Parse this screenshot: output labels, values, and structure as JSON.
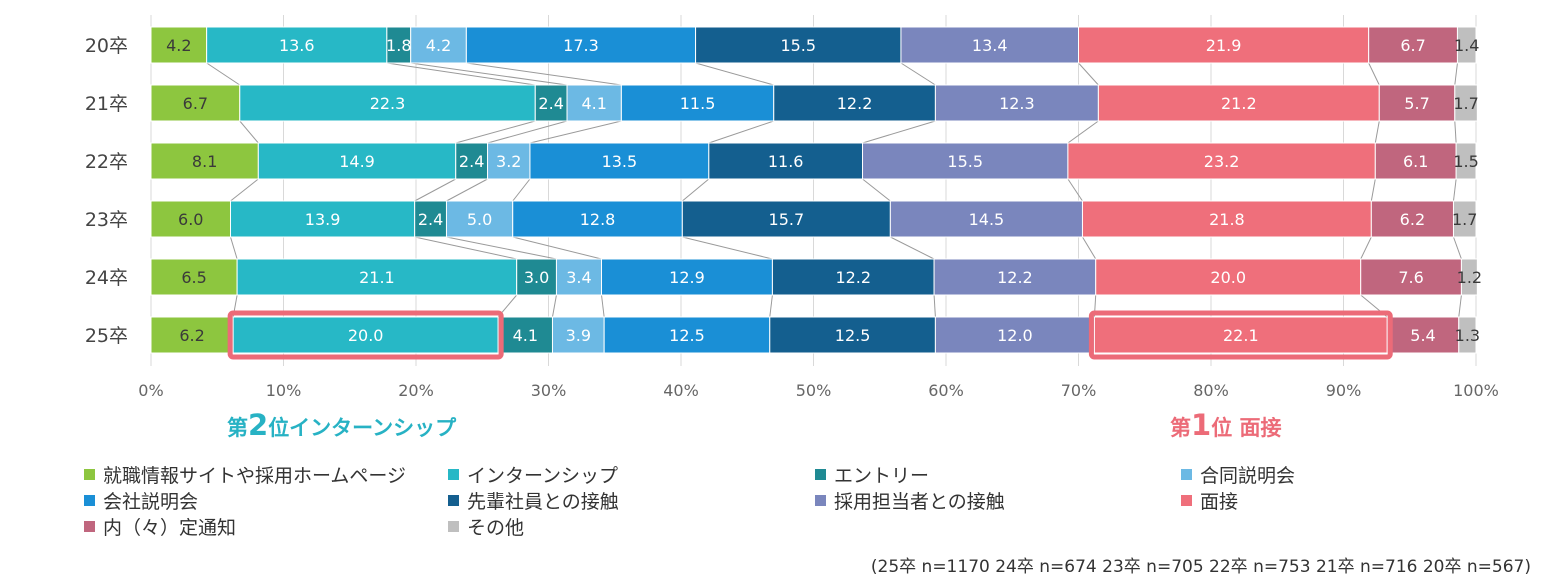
{
  "chart_data": {
    "type": "bar",
    "orientation": "horizontal",
    "stacked": true,
    "percent": true,
    "categories": [
      "20卒",
      "21卒",
      "22卒",
      "23卒",
      "24卒",
      "25卒"
    ],
    "series": [
      {
        "name": "就職情報サイトや採用ホームページ",
        "color": "#8dc63f",
        "values": [
          4.2,
          6.7,
          8.1,
          6.0,
          6.5,
          6.2
        ],
        "labels": [
          "4.2",
          "6.7",
          "8.1",
          "6.0",
          "6.5",
          "6.2"
        ]
      },
      {
        "name": "インターンシップ",
        "color": "#27b8c6",
        "values": [
          13.6,
          22.3,
          14.9,
          13.9,
          21.1,
          20.0
        ],
        "labels": [
          "13.6",
          "22.3",
          "14.9",
          "13.9",
          "21.1",
          "20.0"
        ]
      },
      {
        "name": "エントリー",
        "color": "#1f8a93",
        "values": [
          1.8,
          2.4,
          2.4,
          2.4,
          3.0,
          4.1
        ],
        "labels": [
          "1.8",
          "2.4",
          "2.4",
          "2.4",
          "3.0",
          "4.1"
        ]
      },
      {
        "name": "合同説明会",
        "color": "#6cb9e4",
        "values": [
          4.2,
          4.1,
          3.2,
          5.0,
          3.4,
          3.9
        ],
        "labels": [
          "4.2",
          "4.1",
          "3.2",
          "5.0",
          "3.4",
          "3.9"
        ]
      },
      {
        "name": "会社説明会",
        "color": "#1a8fd6",
        "values": [
          17.3,
          11.5,
          13.5,
          12.8,
          12.9,
          12.5
        ],
        "labels": [
          "17.3",
          "11.5",
          "13.5",
          "12.8",
          "12.9",
          "12.5"
        ]
      },
      {
        "name": "先輩社員との接触",
        "color": "#145f8f",
        "values": [
          15.5,
          12.2,
          11.6,
          15.7,
          12.2,
          12.5
        ],
        "labels": [
          "15.5",
          "12.2",
          "11.6",
          "15.7",
          "12.2",
          "12.5"
        ]
      },
      {
        "name": "採用担当者との接触",
        "color": "#7a86bd",
        "values": [
          13.4,
          12.3,
          15.5,
          14.5,
          12.2,
          12.0
        ],
        "labels": [
          "13.4",
          "12.3",
          "15.5",
          "14.5",
          "12.2",
          "12.0"
        ]
      },
      {
        "name": "面接",
        "color": "#ef6f7b",
        "values": [
          21.9,
          21.2,
          23.2,
          21.8,
          20.0,
          22.1
        ],
        "labels": [
          "21.9",
          "21.2",
          "23.2",
          "21.8",
          "20.0",
          "22.1"
        ]
      },
      {
        "name": "内（々）定通知",
        "color": "#c0667e",
        "values": [
          6.7,
          5.7,
          6.1,
          6.2,
          7.6,
          5.4
        ],
        "labels": [
          "6.7",
          "5.7",
          "6.1",
          "6.2",
          "7.6",
          "5.4"
        ]
      },
      {
        "name": "その他",
        "color": "#bfbfbf",
        "values": [
          1.4,
          1.7,
          1.5,
          1.7,
          1.2,
          1.3
        ],
        "labels": [
          "1.4",
          "1.7",
          "1.5",
          "1.7",
          "1.2",
          "1.3"
        ]
      }
    ],
    "xlim": [
      0,
      100
    ],
    "xticks": [
      "0%",
      "10%",
      "20%",
      "30%",
      "40%",
      "50%",
      "60%",
      "70%",
      "80%",
      "90%",
      "100%"
    ],
    "highlights": [
      {
        "category": "25卒",
        "series": "インターンシップ"
      },
      {
        "category": "25卒",
        "series": "面接"
      }
    ],
    "highlight_color": "#ec6b78",
    "dark_label_series": [
      "就職情報サイトや採用ホームページ",
      "その他"
    ],
    "legend_position": "bottom"
  },
  "callouts": {
    "second": {
      "prefix": "第",
      "rank": "2",
      "suffix": "位インターンシップ"
    },
    "first": {
      "prefix": "第",
      "rank": "1",
      "suffix": "位 面接"
    }
  },
  "note": "(25卒 n=1170 24卒 n=674 23卒 n=705 22卒 n=753 21卒 n=716 20卒 n=567)"
}
